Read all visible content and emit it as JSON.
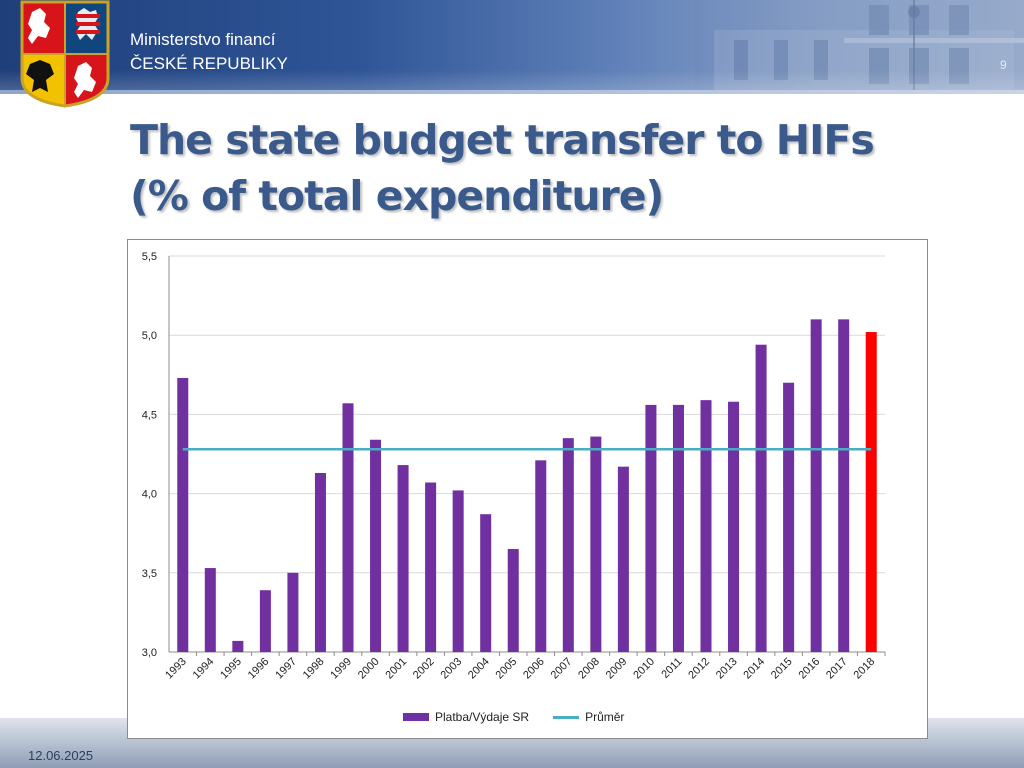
{
  "header": {
    "ministry_line1": "Ministerstvo financí",
    "ministry_line2": "ČESKÉ REPUBLIKY",
    "slide_number": "9"
  },
  "title": {
    "line1": "The state budget transfer to HIFs",
    "line2": "(% of total expenditure)"
  },
  "footer": {
    "date": "12.06.2025"
  },
  "colors": {
    "bar": "#7030a0",
    "bar_highlight": "#ff0000",
    "average_line": "#4bacc6",
    "title": "#3b5a8c"
  },
  "icons": {
    "logo": "czech-coat-of-arms-icon"
  },
  "chart_data": {
    "type": "bar",
    "categories": [
      "1993",
      "1994",
      "1995",
      "1996",
      "1997",
      "1998",
      "1999",
      "2000",
      "2001",
      "2002",
      "2003",
      "2004",
      "2005",
      "2006",
      "2007",
      "2008",
      "2009",
      "2010",
      "2011",
      "2012",
      "2013",
      "2014",
      "2015",
      "2016",
      "2017",
      "2018"
    ],
    "series": [
      {
        "name": "Platba/Výdaje SR",
        "values": [
          4.73,
          3.53,
          3.07,
          3.39,
          3.5,
          4.13,
          4.57,
          4.34,
          4.18,
          4.07,
          4.02,
          3.87,
          3.65,
          4.21,
          4.35,
          4.36,
          4.17,
          4.56,
          4.56,
          4.59,
          4.58,
          4.94,
          4.7,
          5.1,
          5.1,
          5.02
        ]
      },
      {
        "name": "Průměr",
        "type": "line",
        "values": [
          4.28,
          4.28,
          4.28,
          4.28,
          4.28,
          4.28,
          4.28,
          4.28,
          4.28,
          4.28,
          4.28,
          4.28,
          4.28,
          4.28,
          4.28,
          4.28,
          4.28,
          4.28,
          4.28,
          4.28,
          4.28,
          4.28,
          4.28,
          4.28,
          4.28,
          4.28
        ]
      }
    ],
    "highlight_category": "2018",
    "ylim": [
      3.0,
      5.5
    ],
    "yticks": [
      "3,0",
      "3,5",
      "4,0",
      "4,5",
      "5,0",
      "5,5"
    ],
    "grid": true,
    "legend_position": "bottom"
  }
}
